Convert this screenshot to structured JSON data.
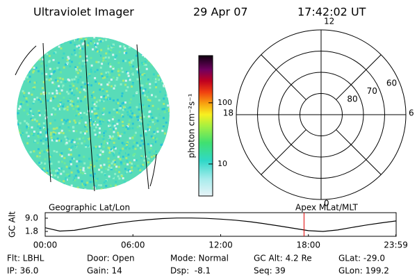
{
  "header": {
    "title": "Ultraviolet Imager",
    "date": "29 Apr 07",
    "time": "17:42:02 UT"
  },
  "colorbar": {
    "label": "photon cm⁻²s⁻¹",
    "log": true,
    "ylim": [
      3,
      590
    ],
    "yticks": [
      10,
      100
    ]
  },
  "polar": {
    "rlim": [
      90,
      50
    ],
    "rings": [
      80,
      70,
      60
    ],
    "mlt_ticks": [
      12,
      6,
      0,
      18
    ]
  },
  "chart_data": {
    "type": "line",
    "ylabel": "GC Alt",
    "left_title": "Geographic Lat/Lon",
    "right_title": "Apex MLat/MLT",
    "x": [
      0,
      1,
      2,
      3,
      4,
      5,
      6,
      7,
      8,
      9,
      10,
      11,
      12,
      13,
      14,
      15,
      16,
      17,
      18,
      19,
      20,
      21,
      22,
      23,
      24
    ],
    "series": [
      {
        "name": "GC Alt",
        "color": "#000000",
        "values": [
          3.8,
          2.0,
          2.4,
          3.8,
          5.2,
          6.4,
          7.4,
          8.2,
          8.8,
          9.1,
          9.1,
          8.9,
          8.5,
          7.9,
          7.1,
          6.0,
          4.8,
          3.5,
          2.2,
          1.8,
          2.6,
          4.0,
          5.3,
          6.5,
          7.5
        ]
      }
    ],
    "cursor_x": 17.7,
    "cursor_color": "#e00000",
    "xlim": [
      0,
      24
    ],
    "ylim": [
      -0.85,
      12.0
    ],
    "xticks": [
      {
        "value": 0,
        "label": "00:00"
      },
      {
        "value": 6,
        "label": "06:00"
      },
      {
        "value": 12,
        "label": "12:00"
      },
      {
        "value": 18,
        "label": "18:00"
      },
      {
        "value": 23.98,
        "label": "23:59"
      }
    ],
    "yticks": [
      {
        "value": 9.0,
        "label": "9.0"
      },
      {
        "value": 1.8,
        "label": "1.8"
      }
    ]
  },
  "footer": [
    [
      "Flt: LBHL",
      "Door: Open",
      "Mode: Normal",
      "GC Alt: 4.2 Re",
      "GLat: -29.0"
    ],
    [
      "IP: 36.0",
      "Gain: 14",
      "Dsp:  -8.1",
      "Seq: 39",
      "GLon: 199.2"
    ]
  ]
}
